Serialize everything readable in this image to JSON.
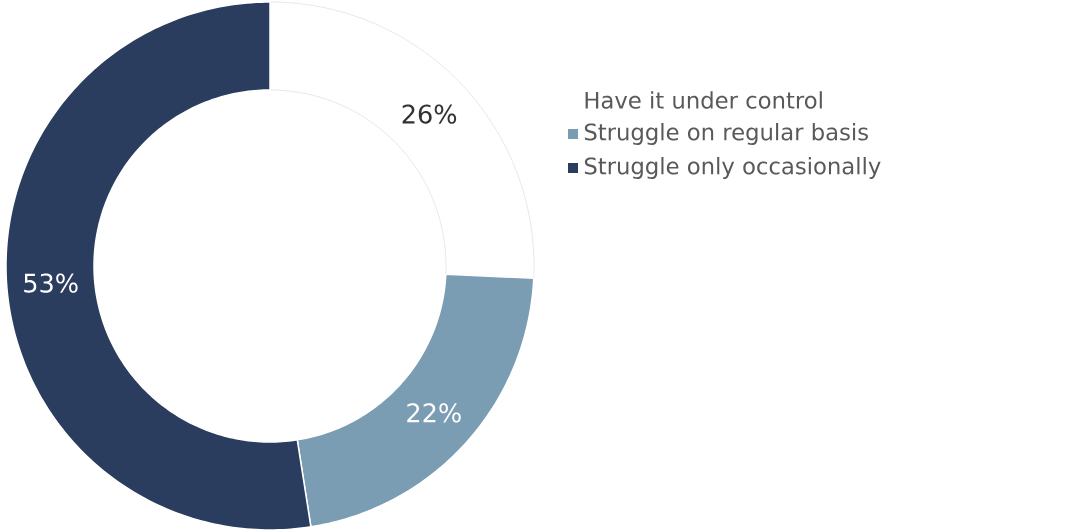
{
  "chart_data": {
    "type": "donut",
    "categories": [
      "Have it under control",
      "Struggle on regular basis",
      "Struggle only occasionally"
    ],
    "values": [
      26,
      22,
      53
    ],
    "value_labels": [
      "26%",
      "22%",
      "53%"
    ],
    "colors": [
      "#ffffff",
      "#7a9db3",
      "#2b3d5e"
    ],
    "legend": "right"
  }
}
